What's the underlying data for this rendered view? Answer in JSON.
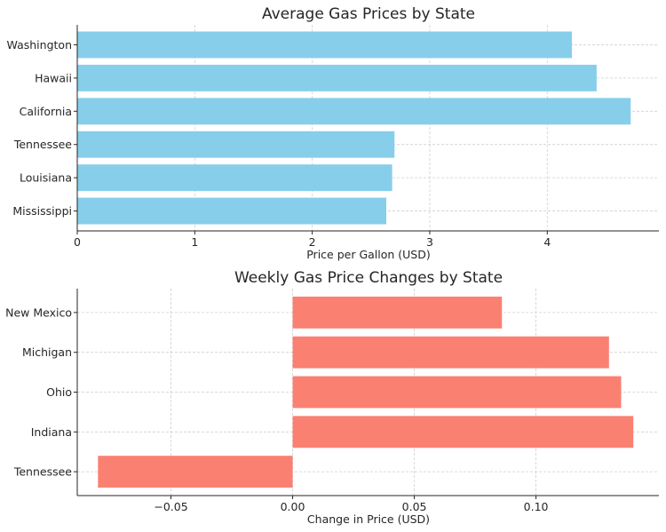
{
  "chart_data": [
    {
      "type": "bar",
      "orientation": "horizontal",
      "title": "Average Gas Prices by State",
      "xlabel": "Price per Gallon (USD)",
      "ylabel": "",
      "categories": [
        "Mississippi",
        "Louisiana",
        "Tennessee",
        "California",
        "Hawaii",
        "Washington"
      ],
      "values": [
        2.63,
        2.68,
        2.7,
        4.71,
        4.42,
        4.21
      ],
      "xlim": [
        0,
        4.95
      ],
      "xticks": [
        0,
        1,
        2,
        3,
        4
      ],
      "xtick_labels": [
        "0",
        "1",
        "2",
        "3",
        "4"
      ],
      "color": "#87CEEB",
      "grid": true
    },
    {
      "type": "bar",
      "orientation": "horizontal",
      "title": "Weekly Gas Price Changes by State",
      "xlabel": "Change in Price (USD)",
      "ylabel": "",
      "categories": [
        "Tennessee",
        "Indiana",
        "Ohio",
        "Michigan",
        "New Mexico"
      ],
      "values": [
        -0.08,
        0.14,
        0.135,
        0.13,
        0.086
      ],
      "xlim": [
        -0.0885,
        0.1505
      ],
      "xticks": [
        -0.05,
        0.0,
        0.05,
        0.1
      ],
      "xtick_labels": [
        "−0.05",
        "0.00",
        "0.05",
        "0.10"
      ],
      "color": "#FA8072",
      "grid": true
    }
  ]
}
